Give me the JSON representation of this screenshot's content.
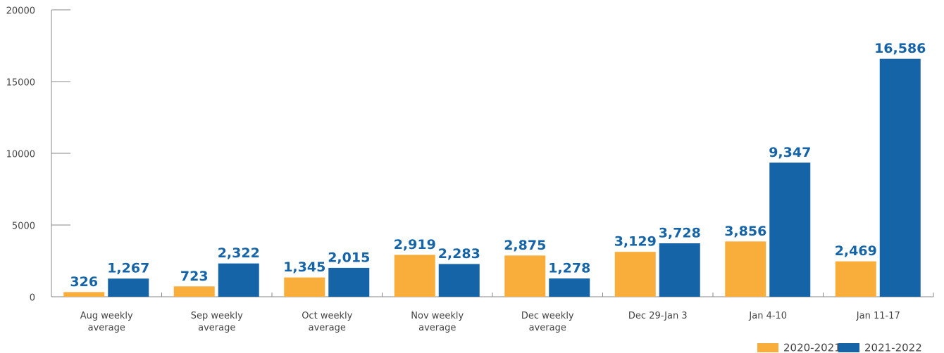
{
  "chart_data": {
    "type": "bar",
    "categories": [
      "Aug weekly average",
      "Sep weekly average",
      "Oct weekly average",
      "Nov weekly average",
      "Dec weekly average",
      "Dec 29-Jan 3",
      "Jan 4-10",
      "Jan 11-17"
    ],
    "series": [
      {
        "name": "2020-2021",
        "color": "#f9ae3c",
        "values": [
          326,
          723,
          1345,
          2919,
          2875,
          3129,
          3856,
          2469
        ],
        "value_labels": [
          "326",
          "723",
          "1,345",
          "2,919",
          "2,875",
          "3,129",
          "3,856",
          "2,469"
        ]
      },
      {
        "name": "2021-2022",
        "color": "#1664a8",
        "values": [
          1267,
          2322,
          2015,
          2283,
          1278,
          3728,
          9347,
          16586
        ],
        "value_labels": [
          "1,267",
          "2,322",
          "2,015",
          "2,283",
          "1,278",
          "3,728",
          "9,347",
          "16,586"
        ]
      }
    ],
    "ylim": [
      0,
      20000
    ],
    "yticks": [
      0,
      5000,
      10000,
      15000,
      20000
    ],
    "legend": "bottom-right",
    "label_color": "#1664a8"
  }
}
